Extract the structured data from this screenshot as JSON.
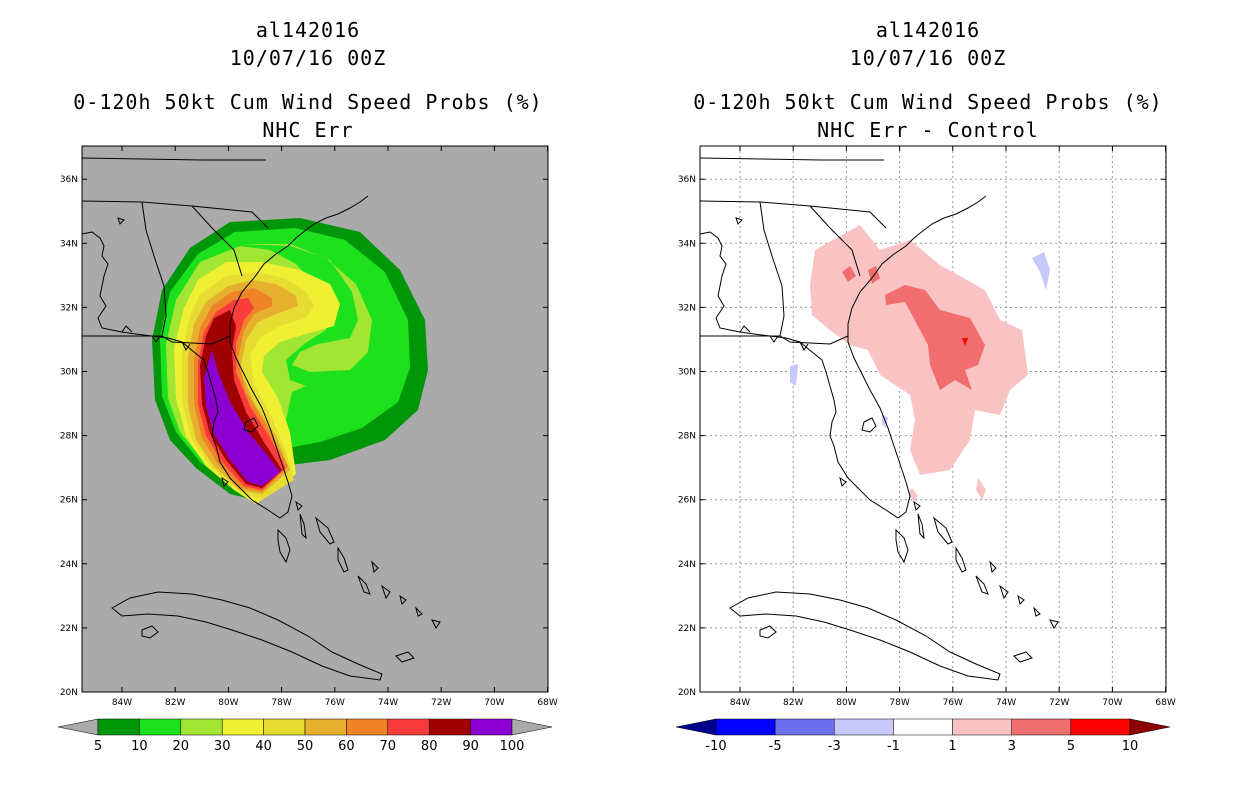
{
  "left_panel": {
    "storm_id": "al142016",
    "datetime": "10/07/16 00Z",
    "title": "0-120h 50kt Cum Wind Speed Probs (%)",
    "subtitle": "NHC Err",
    "colorbar": {
      "labels": [
        "5",
        "10",
        "20",
        "30",
        "40",
        "50",
        "60",
        "70",
        "80",
        "90",
        "100"
      ],
      "colors": [
        "#00960a",
        "#1ee11e",
        "#a0e632",
        "#f0f032",
        "#e6dc32",
        "#e6af2d",
        "#f08228",
        "#fa3c3c",
        "#a00000",
        "#8c00d2"
      ],
      "under_color": "#aaaaaa",
      "over_color": "#aaaaaa"
    }
  },
  "right_panel": {
    "storm_id": "al142016",
    "datetime": "10/07/16 00Z",
    "title": "0-120h 50kt Cum Wind Speed Probs (%)",
    "subtitle": "NHC Err - Control",
    "colorbar": {
      "labels": [
        "-10",
        "-5",
        "-3",
        "-1",
        "1",
        "3",
        "5",
        "10"
      ],
      "colors": [
        "#0000ff",
        "#6e6ef0",
        "#c8c8fa",
        "#ffffff",
        "#fac3c3",
        "#f06e6e",
        "#ff0000"
      ],
      "under_color": "#00008c",
      "over_color": "#8c0000"
    }
  },
  "map": {
    "lon_labels": [
      "84W",
      "82W",
      "80W",
      "78W",
      "76W",
      "74W",
      "72W",
      "70W",
      "68W"
    ],
    "lat_labels": [
      "20N",
      "22N",
      "24N",
      "26N",
      "28N",
      "30N",
      "32N",
      "34N",
      "36N"
    ]
  }
}
